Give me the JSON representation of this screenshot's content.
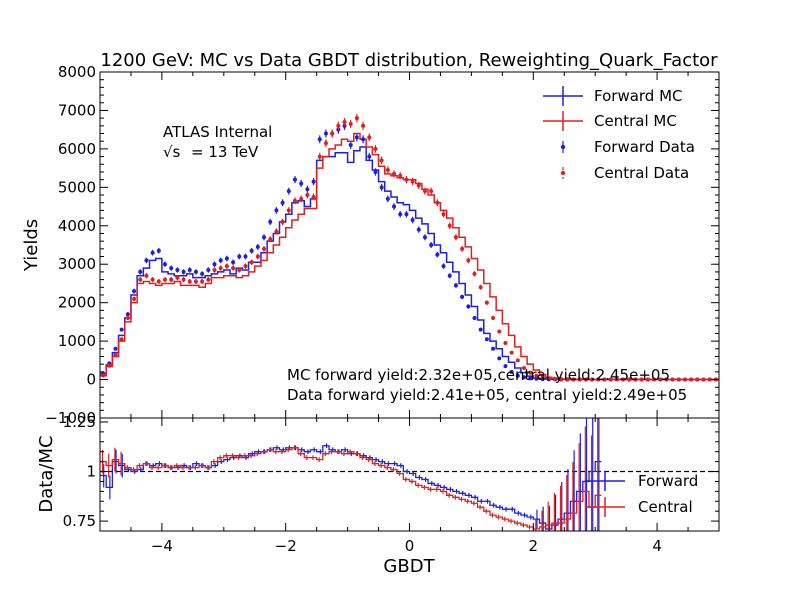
{
  "chart_data": [
    {
      "type": "line",
      "panel": "main",
      "title": "1200 GeV: MC vs Data GBDT distribution, Reweighting_Quark_Factor",
      "xlabel": "GBDT",
      "ylabel": "Yields",
      "xlim": [
        -5,
        5
      ],
      "ylim": [
        -1000,
        8000
      ],
      "x_ticks": [
        -4,
        -2,
        0,
        2,
        4
      ],
      "y_ticks": [
        -1000,
        0,
        1000,
        2000,
        3000,
        4000,
        5000,
        6000,
        7000,
        8000
      ],
      "grid": false,
      "legend_position": "top-right",
      "annotations": {
        "experiment": "ATLAS Internal",
        "energy_sqrt": "√s",
        "energy_value": "= 13 TeV",
        "mc_yield": "MC forward yield:2.32e+05,central yield:2.45e+05",
        "data_yield": "Data forward yield:2.41e+05, central yield:2.49e+05"
      },
      "x_centers": [
        -4.95,
        -4.85,
        -4.75,
        -4.65,
        -4.55,
        -4.45,
        -4.35,
        -4.25,
        -4.15,
        -4.05,
        -3.95,
        -3.85,
        -3.75,
        -3.65,
        -3.55,
        -3.45,
        -3.35,
        -3.25,
        -3.15,
        -3.05,
        -2.95,
        -2.85,
        -2.75,
        -2.65,
        -2.55,
        -2.45,
        -2.35,
        -2.25,
        -2.15,
        -2.05,
        -1.95,
        -1.85,
        -1.75,
        -1.65,
        -1.55,
        -1.45,
        -1.35,
        -1.25,
        -1.15,
        -1.05,
        -0.95,
        -0.85,
        -0.75,
        -0.65,
        -0.55,
        -0.45,
        -0.35,
        -0.25,
        -0.15,
        -0.05,
        0.05,
        0.15,
        0.25,
        0.35,
        0.45,
        0.55,
        0.65,
        0.75,
        0.85,
        0.95,
        1.05,
        1.15,
        1.25,
        1.35,
        1.45,
        1.55,
        1.65,
        1.75,
        1.85,
        1.95,
        2.05,
        2.15,
        2.25,
        2.35,
        2.45,
        2.55,
        2.65,
        2.75,
        2.85,
        2.95,
        3.05,
        3.15,
        3.25,
        3.35,
        3.45,
        3.55,
        3.65,
        3.75,
        3.85,
        3.95,
        4.05,
        4.15,
        4.25,
        4.35,
        4.45,
        4.55,
        4.65,
        4.75,
        4.85,
        4.95
      ],
      "series": [
        {
          "name": "Forward MC",
          "style": "step",
          "color": "#1f1fe0",
          "values": [
            150,
            380,
            700,
            1150,
            1600,
            2200,
            2700,
            2900,
            3100,
            3150,
            2800,
            2750,
            2700,
            2700,
            2750,
            2650,
            2650,
            2700,
            2750,
            2800,
            2850,
            2750,
            2900,
            2850,
            3050,
            3050,
            3300,
            3600,
            3800,
            4100,
            4300,
            4600,
            4650,
            4500,
            4700,
            5700,
            5800,
            5800,
            5900,
            5900,
            5650,
            5950,
            6050,
            5700,
            5450,
            5150,
            4900,
            4750,
            4600,
            4550,
            4400,
            4200,
            4050,
            3800,
            3500,
            3300,
            3050,
            2800,
            2500,
            2200,
            1900,
            1550,
            1200,
            1000,
            800,
            600,
            450,
            300,
            180,
            90,
            40,
            20,
            10,
            5,
            3,
            2,
            1,
            1,
            1,
            1,
            1,
            1,
            1,
            0,
            0,
            0,
            0,
            0,
            0,
            0,
            0,
            0,
            0,
            0,
            0,
            0,
            0,
            0,
            0,
            0
          ]
        },
        {
          "name": "Central MC",
          "style": "step",
          "color": "#e02020",
          "values": [
            100,
            340,
            600,
            1000,
            1500,
            2000,
            2500,
            2550,
            2500,
            2450,
            2500,
            2500,
            2550,
            2450,
            2450,
            2450,
            2400,
            2500,
            2650,
            2650,
            2700,
            2700,
            2650,
            2700,
            2800,
            2950,
            3100,
            3300,
            3500,
            3700,
            3950,
            4150,
            4300,
            4450,
            4450,
            5500,
            5800,
            6000,
            6100,
            6250,
            6200,
            6400,
            6250,
            6050,
            5850,
            5550,
            5350,
            5300,
            5250,
            5200,
            5200,
            5100,
            4950,
            4800,
            4600,
            4400,
            4200,
            3950,
            3700,
            3450,
            3150,
            2850,
            2500,
            2150,
            1800,
            1450,
            1150,
            850,
            600,
            400,
            250,
            130,
            60,
            30,
            15,
            8,
            4,
            2,
            1,
            1,
            1,
            1,
            1,
            0,
            0,
            0,
            0,
            0,
            0,
            0,
            0,
            0,
            0,
            0,
            0,
            0,
            0,
            0,
            0,
            0
          ]
        },
        {
          "name": "Forward Data",
          "style": "points",
          "color": "#1f1fe0",
          "values": [
            160,
            420,
            800,
            1300,
            1700,
            2300,
            2800,
            3100,
            3300,
            3350,
            3000,
            2900,
            2850,
            2800,
            2850,
            2800,
            2750,
            2850,
            3000,
            3100,
            3150,
            3050,
            3200,
            3200,
            3350,
            3450,
            3700,
            4100,
            4400,
            4600,
            4900,
            5200,
            5100,
            4950,
            5150,
            6250,
            6400,
            6400,
            6500,
            6600,
            6100,
            6300,
            6250,
            5800,
            5400,
            5000,
            4700,
            4500,
            4300,
            4300,
            4150,
            3900,
            3700,
            3500,
            3250,
            2950,
            2700,
            2450,
            2150,
            1900,
            1600,
            1300,
            1050,
            800,
            550,
            350,
            200,
            100,
            60,
            30,
            20,
            10,
            5,
            4,
            3,
            2,
            2,
            1,
            1,
            1,
            1,
            1,
            0,
            0,
            0,
            0,
            0,
            0,
            0,
            0,
            0,
            0,
            0,
            0,
            0,
            0,
            0,
            0,
            0,
            0
          ]
        },
        {
          "name": "Central Data",
          "style": "points",
          "color": "#e02020",
          "values": [
            110,
            360,
            650,
            1050,
            1600,
            2100,
            2600,
            2700,
            2600,
            2550,
            2600,
            2600,
            2650,
            2600,
            2550,
            2550,
            2550,
            2600,
            2850,
            2900,
            2950,
            2900,
            2850,
            2950,
            3050,
            3200,
            3400,
            3650,
            3850,
            4100,
            4400,
            4650,
            4700,
            4800,
            4750,
            5800,
            6150,
            6400,
            6600,
            6700,
            6650,
            6800,
            6600,
            6300,
            6000,
            5700,
            5450,
            5350,
            5300,
            5200,
            5150,
            5050,
            4900,
            4900,
            4600,
            4300,
            4000,
            3700,
            3400,
            3100,
            2750,
            2400,
            2000,
            1600,
            1250,
            950,
            700,
            500,
            300,
            180,
            100,
            60,
            30,
            20,
            10,
            8,
            6,
            4,
            3,
            2,
            2,
            1,
            1,
            1,
            0,
            0,
            0,
            0,
            0,
            0,
            0,
            0,
            0,
            0,
            0,
            0,
            0,
            0,
            0,
            0
          ]
        }
      ]
    },
    {
      "type": "line",
      "panel": "ratio",
      "xlabel": "GBDT",
      "ylabel": "Data/MC",
      "xlim": [
        -5,
        5
      ],
      "ylim": [
        0.7,
        1.27
      ],
      "x_ticks": [
        -4,
        -2,
        0,
        2,
        4
      ],
      "y_ticks": [
        0.75,
        1.0,
        1.25
      ],
      "reference_line": 1.0,
      "legend_position": "right",
      "x_centers": [
        -4.95,
        -4.85,
        -4.75,
        -4.65,
        -4.55,
        -4.45,
        -4.35,
        -4.25,
        -4.15,
        -4.05,
        -3.95,
        -3.85,
        -3.75,
        -3.65,
        -3.55,
        -3.45,
        -3.35,
        -3.25,
        -3.15,
        -3.05,
        -2.95,
        -2.85,
        -2.75,
        -2.65,
        -2.55,
        -2.45,
        -2.35,
        -2.25,
        -2.15,
        -2.05,
        -1.95,
        -1.85,
        -1.75,
        -1.65,
        -1.55,
        -1.45,
        -1.35,
        -1.25,
        -1.15,
        -1.05,
        -0.95,
        -0.85,
        -0.75,
        -0.65,
        -0.55,
        -0.45,
        -0.35,
        -0.25,
        -0.15,
        -0.05,
        0.05,
        0.15,
        0.25,
        0.35,
        0.45,
        0.55,
        0.65,
        0.75,
        0.85,
        0.95,
        1.05,
        1.15,
        1.25,
        1.35,
        1.45,
        1.55,
        1.65,
        1.75,
        1.85,
        1.95,
        2.05,
        2.15,
        2.25,
        2.35,
        2.45,
        2.55,
        2.65,
        2.75,
        2.85,
        2.95,
        3.05
      ],
      "series": [
        {
          "name": "Forward",
          "color": "#1f1fe0",
          "values": [
            0.98,
            0.92,
            1.05,
            1.03,
            1.01,
            1.0,
            1.01,
            1.04,
            1.03,
            1.04,
            1.03,
            1.02,
            1.02,
            1.03,
            1.02,
            1.04,
            1.03,
            1.02,
            1.03,
            1.05,
            1.06,
            1.07,
            1.08,
            1.07,
            1.09,
            1.1,
            1.1,
            1.11,
            1.12,
            1.11,
            1.12,
            1.12,
            1.11,
            1.1,
            1.11,
            1.1,
            1.13,
            1.11,
            1.1,
            1.11,
            1.09,
            1.09,
            1.08,
            1.07,
            1.06,
            1.05,
            1.04,
            1.04,
            1.03,
            1.0,
            0.99,
            0.97,
            0.96,
            0.94,
            0.93,
            0.92,
            0.91,
            0.9,
            0.89,
            0.88,
            0.87,
            0.85,
            0.85,
            0.83,
            0.82,
            0.81,
            0.81,
            0.79,
            0.78,
            0.77,
            0.76,
            0.74,
            0.71,
            0.73,
            0.76,
            0.79,
            0.85,
            0.9,
            0.95,
            1.0,
            1.05
          ]
        },
        {
          "name": "Central",
          "color": "#e02020",
          "values": [
            1.05,
            1.03,
            1.06,
            1.04,
            1.02,
            1.01,
            1.03,
            1.04,
            1.02,
            1.02,
            1.03,
            1.02,
            1.03,
            1.02,
            1.02,
            1.02,
            1.03,
            1.02,
            1.05,
            1.07,
            1.08,
            1.08,
            1.07,
            1.08,
            1.08,
            1.09,
            1.1,
            1.11,
            1.1,
            1.1,
            1.11,
            1.12,
            1.09,
            1.07,
            1.07,
            1.06,
            1.09,
            1.1,
            1.1,
            1.09,
            1.1,
            1.09,
            1.07,
            1.06,
            1.04,
            1.03,
            1.02,
            1.01,
            0.99,
            0.96,
            0.95,
            0.93,
            0.92,
            0.91,
            0.91,
            0.9,
            0.88,
            0.87,
            0.86,
            0.85,
            0.84,
            0.82,
            0.8,
            0.78,
            0.77,
            0.76,
            0.75,
            0.74,
            0.73,
            0.72,
            0.71,
            0.72,
            0.73,
            0.74,
            0.74,
            0.76,
            0.79,
            0.85,
            0.9,
            0.82,
            0.88
          ]
        }
      ]
    }
  ]
}
